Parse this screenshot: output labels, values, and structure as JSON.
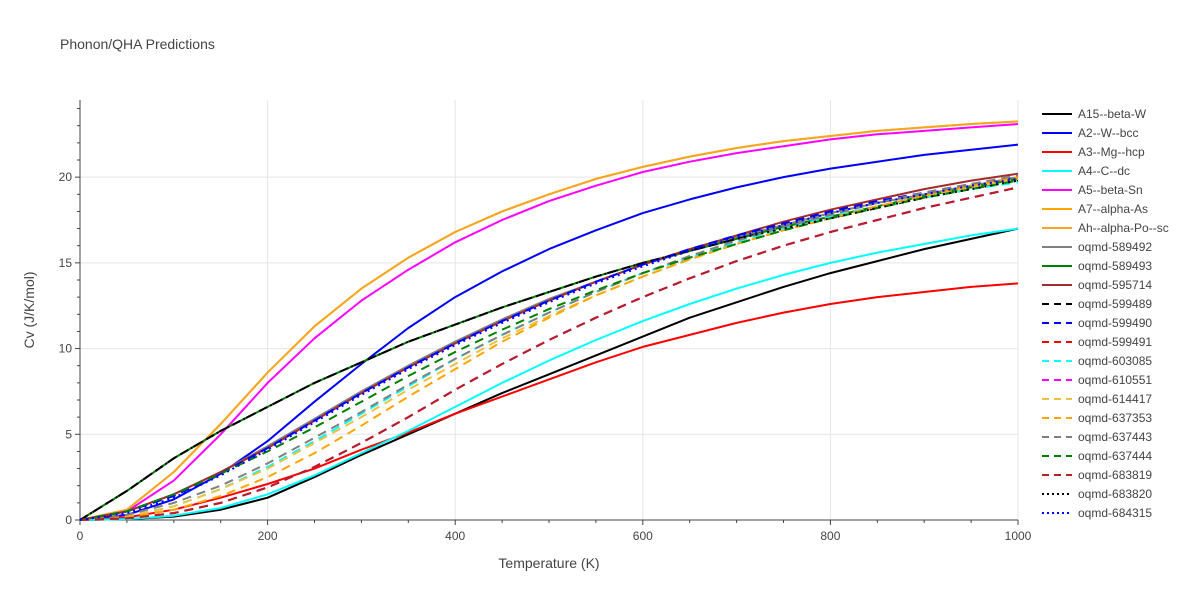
{
  "chart_data": {
    "type": "line",
    "title": "Phonon/QHA Predictions",
    "xlabel": "Temperature (K)",
    "ylabel": "Cv (J/K/mol)",
    "xlim": [
      0,
      1000
    ],
    "ylim": [
      0,
      24.5
    ],
    "x_ticks": [
      0,
      200,
      400,
      600,
      800,
      1000
    ],
    "y_ticks": [
      0,
      5,
      10,
      15,
      20
    ],
    "grid": true,
    "legend_position": "right",
    "x": [
      0,
      50,
      100,
      150,
      200,
      250,
      300,
      350,
      400,
      450,
      500,
      550,
      600,
      650,
      700,
      750,
      800,
      850,
      900,
      950,
      1000
    ],
    "series": [
      {
        "name": "A15--beta-W",
        "color": "#000000",
        "dash": "solid",
        "values": [
          0,
          0.05,
          0.2,
          0.6,
          1.3,
          2.5,
          3.8,
          5.0,
          6.2,
          7.4,
          8.5,
          9.6,
          10.7,
          11.8,
          12.7,
          13.6,
          14.4,
          15.1,
          15.8,
          16.4,
          17.0
        ]
      },
      {
        "name": "A2--W--bcc",
        "color": "#0000ff",
        "dash": "solid",
        "values": [
          0,
          0.3,
          1.2,
          2.7,
          4.6,
          6.9,
          9.1,
          11.2,
          13.0,
          14.5,
          15.8,
          16.9,
          17.9,
          18.7,
          19.4,
          20.0,
          20.5,
          20.9,
          21.3,
          21.6,
          21.9
        ]
      },
      {
        "name": "A3--Mg--hcp",
        "color": "#ff0000",
        "dash": "solid",
        "values": [
          0,
          0.15,
          0.6,
          1.3,
          2.1,
          3.0,
          4.1,
          5.1,
          6.2,
          7.2,
          8.2,
          9.2,
          10.1,
          10.8,
          11.5,
          12.1,
          12.6,
          13.0,
          13.3,
          13.6,
          13.8
        ]
      },
      {
        "name": "A4--C--dc",
        "color": "#00ffff",
        "dash": "solid",
        "values": [
          0,
          0.05,
          0.25,
          0.7,
          1.5,
          2.6,
          3.9,
          5.2,
          6.6,
          8.0,
          9.3,
          10.5,
          11.6,
          12.6,
          13.5,
          14.3,
          15.0,
          15.6,
          16.1,
          16.6,
          17.0
        ]
      },
      {
        "name": "A5--beta-Sn",
        "color": "#ff00ff",
        "dash": "solid",
        "values": [
          0,
          0.5,
          2.3,
          5.0,
          8.0,
          10.6,
          12.8,
          14.6,
          16.2,
          17.5,
          18.6,
          19.5,
          20.3,
          20.9,
          21.4,
          21.8,
          22.2,
          22.5,
          22.7,
          22.9,
          23.1
        ]
      },
      {
        "name": "A7--alpha-As",
        "color": "#ffa500",
        "dash": "solid",
        "values": [
          0,
          0.6,
          2.8,
          5.6,
          8.6,
          11.3,
          13.5,
          15.3,
          16.8,
          18.0,
          19.0,
          19.9,
          20.6,
          21.2,
          21.7,
          22.1,
          22.4,
          22.7,
          22.9,
          23.1,
          23.25
        ]
      },
      {
        "name": "Ah--alpha-Po--sc",
        "color": "#f5a623",
        "dash": "solid",
        "values": [
          0,
          0.6,
          2.8,
          5.6,
          8.6,
          11.3,
          13.5,
          15.3,
          16.8,
          18.0,
          19.0,
          19.9,
          20.6,
          21.2,
          21.7,
          22.1,
          22.4,
          22.7,
          22.9,
          23.1,
          23.25
        ]
      },
      {
        "name": "oqmd-589492",
        "color": "#808080",
        "dash": "solid",
        "values": [
          0,
          0.5,
          1.5,
          2.8,
          4.3,
          5.9,
          7.5,
          9.0,
          10.4,
          11.7,
          12.9,
          13.9,
          14.9,
          15.7,
          16.5,
          17.2,
          17.9,
          18.5,
          19.0,
          19.5,
          20.0
        ]
      },
      {
        "name": "oqmd-589493",
        "color": "#008000",
        "dash": "solid",
        "values": [
          0,
          1.7,
          3.6,
          5.2,
          6.6,
          8.0,
          9.2,
          10.4,
          11.4,
          12.4,
          13.3,
          14.2,
          15.0,
          15.7,
          16.4,
          17.1,
          17.7,
          18.3,
          18.9,
          19.4,
          19.9
        ]
      },
      {
        "name": "oqmd-595714",
        "color": "#a52a2a",
        "dash": "solid",
        "values": [
          0,
          0.5,
          1.5,
          2.8,
          4.2,
          5.8,
          7.4,
          8.9,
          10.3,
          11.6,
          12.8,
          13.9,
          14.9,
          15.8,
          16.6,
          17.4,
          18.1,
          18.7,
          19.3,
          19.8,
          20.2
        ]
      },
      {
        "name": "oqmd-599489",
        "color": "#000000",
        "dash": "dash",
        "values": [
          0,
          1.7,
          3.6,
          5.2,
          6.6,
          8.0,
          9.2,
          10.4,
          11.4,
          12.4,
          13.3,
          14.2,
          15.0,
          15.7,
          16.4,
          17.0,
          17.6,
          18.2,
          18.8,
          19.3,
          19.8
        ]
      },
      {
        "name": "oqmd-599490",
        "color": "#0000ff",
        "dash": "dash",
        "values": [
          0,
          0.5,
          1.4,
          2.7,
          4.2,
          5.8,
          7.4,
          8.9,
          10.3,
          11.6,
          12.8,
          13.9,
          14.9,
          15.8,
          16.6,
          17.3,
          18.0,
          18.6,
          19.1,
          19.6,
          20.0
        ]
      },
      {
        "name": "oqmd-599491",
        "color": "#ff0000",
        "dash": "dash",
        "values": [
          0,
          0.1,
          0.4,
          1.0,
          1.9,
          3.1,
          4.5,
          6.0,
          7.6,
          9.1,
          10.5,
          11.8,
          13.0,
          14.1,
          15.1,
          16.0,
          16.8,
          17.5,
          18.2,
          18.8,
          19.4
        ]
      },
      {
        "name": "oqmd-603085",
        "color": "#00ffff",
        "dash": "dash",
        "values": [
          0,
          0.2,
          0.8,
          1.8,
          3.1,
          4.6,
          6.2,
          7.8,
          9.4,
          10.8,
          12.1,
          13.3,
          14.4,
          15.3,
          16.2,
          17.0,
          17.7,
          18.3,
          18.8,
          19.3,
          19.7
        ]
      },
      {
        "name": "oqmd-610551",
        "color": "#ff00ff",
        "dash": "dash",
        "values": [
          0,
          0.1,
          0.4,
          1.0,
          1.9,
          3.1,
          4.5,
          6.0,
          7.6,
          9.1,
          10.5,
          11.8,
          13.0,
          14.1,
          15.1,
          16.0,
          16.8,
          17.5,
          18.2,
          18.8,
          19.4
        ]
      },
      {
        "name": "oqmd-614417",
        "color": "#f0c040",
        "dash": "dash",
        "values": [
          0,
          0.2,
          0.8,
          1.8,
          3.0,
          4.5,
          6.0,
          7.6,
          9.1,
          10.6,
          11.9,
          13.1,
          14.2,
          15.2,
          16.1,
          16.9,
          17.6,
          18.3,
          18.9,
          19.4,
          19.9
        ]
      },
      {
        "name": "oqmd-637353",
        "color": "#ffa500",
        "dash": "dash",
        "values": [
          0,
          0.15,
          0.6,
          1.4,
          2.5,
          3.9,
          5.5,
          7.2,
          8.8,
          10.4,
          11.8,
          13.1,
          14.2,
          15.2,
          16.1,
          16.9,
          17.6,
          18.3,
          18.9,
          19.5,
          20.0
        ]
      },
      {
        "name": "oqmd-637443",
        "color": "#808080",
        "dash": "dash",
        "values": [
          0,
          0.3,
          1.0,
          2.0,
          3.3,
          4.8,
          6.3,
          7.9,
          9.4,
          10.8,
          12.1,
          13.3,
          14.4,
          15.4,
          16.3,
          17.1,
          17.8,
          18.5,
          19.1,
          19.6,
          20.1
        ]
      },
      {
        "name": "oqmd-637444",
        "color": "#008000",
        "dash": "dash",
        "values": [
          0,
          0.5,
          1.5,
          2.7,
          4.0,
          5.4,
          6.9,
          8.4,
          9.8,
          11.1,
          12.3,
          13.4,
          14.4,
          15.3,
          16.1,
          16.9,
          17.6,
          18.2,
          18.8,
          19.3,
          19.8
        ]
      },
      {
        "name": "oqmd-683819",
        "color": "#b22222",
        "dash": "dash",
        "values": [
          0,
          0.1,
          0.4,
          1.0,
          1.9,
          3.1,
          4.5,
          6.0,
          7.6,
          9.1,
          10.5,
          11.8,
          13.0,
          14.1,
          15.1,
          16.0,
          16.8,
          17.5,
          18.2,
          18.8,
          19.4
        ]
      },
      {
        "name": "oqmd-683820",
        "color": "#000000",
        "dash": "dot",
        "values": [
          0,
          1.7,
          3.6,
          5.2,
          6.6,
          8.0,
          9.2,
          10.4,
          11.4,
          12.4,
          13.3,
          14.2,
          15.0,
          15.7,
          16.4,
          17.0,
          17.6,
          18.2,
          18.8,
          19.3,
          19.8
        ]
      },
      {
        "name": "oqmd-684315",
        "color": "#0000ff",
        "dash": "dot",
        "values": [
          0,
          0.4,
          1.3,
          2.6,
          4.1,
          5.7,
          7.3,
          8.8,
          10.2,
          11.5,
          12.7,
          13.8,
          14.8,
          15.7,
          16.5,
          17.2,
          17.9,
          18.5,
          19.0,
          19.5,
          19.9
        ]
      }
    ]
  }
}
